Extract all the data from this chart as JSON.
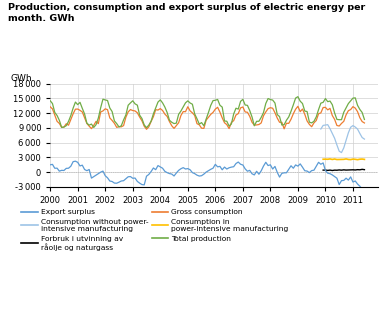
{
  "title": "Production, consumption and export surplus of electric energy per\nmonth. GWh",
  "ylabel": "GWh",
  "ylim": [
    -3000,
    18000
  ],
  "yticks": [
    -3000,
    0,
    3000,
    6000,
    9000,
    12000,
    15000,
    18000
  ],
  "xstart_year": 2000,
  "xend_year": 2011.92,
  "colors": {
    "export_surplus": "#5b9bd5",
    "forbruk": "#000000",
    "consumption_power_intensive": "#ffc000",
    "consumption_without_power": "#9dc3e6",
    "gross_consumption": "#ed7d31",
    "total_production": "#70ad47"
  }
}
